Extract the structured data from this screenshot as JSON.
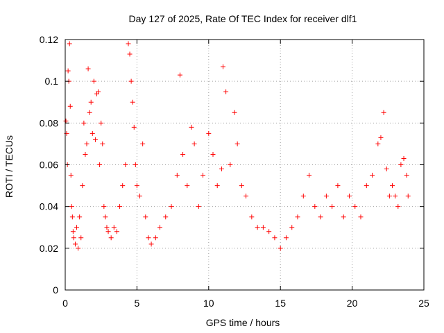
{
  "chart_data": {
    "type": "scatter",
    "title": "Day 127 of 2025, Rate Of TEC Index for receiver dlf1",
    "xlabel": "GPS time / hours",
    "ylabel": "ROTI / TECUs",
    "xlim": [
      0,
      25
    ],
    "ylim": [
      0,
      0.12
    ],
    "xticks": [
      0,
      5,
      10,
      15,
      20,
      25
    ],
    "yticks": [
      0,
      0.02,
      0.04,
      0.06,
      0.08,
      0.1,
      0.12
    ],
    "xtick_labels": [
      "0",
      "5",
      "10",
      "15",
      "20",
      "25"
    ],
    "ytick_labels": [
      "0",
      "0.02",
      "0.04",
      "0.06",
      "0.08",
      "0.1",
      "0.12"
    ],
    "grid": true,
    "marker": "+",
    "color": "#ff0000",
    "series": [
      {
        "x": [
          0.05,
          0.1,
          0.15,
          0.2,
          0.25,
          0.3,
          0.35,
          0.4,
          0.45,
          0.5,
          0.55,
          0.6,
          0.7,
          0.8,
          0.9,
          1.0,
          1.1,
          1.2,
          1.3,
          1.4,
          1.5,
          1.6,
          1.7,
          1.8,
          1.9,
          2.0,
          2.1,
          2.2,
          2.3,
          2.4,
          2.5,
          2.6,
          2.7,
          2.8,
          2.9,
          3.0,
          3.2,
          3.4,
          3.6,
          3.8,
          4.0,
          4.2,
          4.4,
          4.5,
          4.6,
          4.7,
          4.8,
          4.9,
          5.0,
          5.2,
          5.4,
          5.6,
          5.8,
          6.0,
          6.3,
          6.6,
          7.0,
          7.4,
          7.8,
          8.0,
          8.2,
          8.5,
          8.8,
          9.0,
          9.3,
          9.6,
          10.0,
          10.3,
          10.6,
          10.9,
          11.0,
          11.2,
          11.5,
          11.8,
          12.0,
          12.3,
          12.6,
          13.0,
          13.4,
          13.8,
          14.2,
          14.6,
          15.0,
          15.4,
          15.8,
          16.2,
          16.6,
          17.0,
          17.4,
          17.8,
          18.2,
          18.6,
          19.0,
          19.4,
          19.8,
          20.2,
          20.6,
          21.0,
          21.4,
          21.8,
          22.0,
          22.2,
          22.4,
          22.6,
          22.8,
          23.0,
          23.2,
          23.4,
          23.6,
          23.8,
          23.9
        ],
        "y": [
          0.081,
          0.075,
          0.06,
          0.105,
          0.1,
          0.118,
          0.088,
          0.055,
          0.04,
          0.035,
          0.028,
          0.025,
          0.022,
          0.03,
          0.02,
          0.035,
          0.025,
          0.05,
          0.08,
          0.065,
          0.07,
          0.106,
          0.085,
          0.09,
          0.075,
          0.1,
          0.072,
          0.094,
          0.095,
          0.06,
          0.08,
          0.07,
          0.04,
          0.035,
          0.03,
          0.028,
          0.025,
          0.03,
          0.028,
          0.04,
          0.05,
          0.06,
          0.118,
          0.113,
          0.1,
          0.09,
          0.078,
          0.06,
          0.05,
          0.045,
          0.07,
          0.035,
          0.025,
          0.022,
          0.025,
          0.03,
          0.035,
          0.04,
          0.055,
          0.103,
          0.065,
          0.05,
          0.078,
          0.07,
          0.04,
          0.055,
          0.075,
          0.065,
          0.05,
          0.058,
          0.107,
          0.095,
          0.06,
          0.085,
          0.07,
          0.05,
          0.045,
          0.035,
          0.03,
          0.03,
          0.028,
          0.025,
          0.02,
          0.025,
          0.03,
          0.035,
          0.045,
          0.055,
          0.04,
          0.035,
          0.045,
          0.04,
          0.05,
          0.035,
          0.045,
          0.04,
          0.035,
          0.05,
          0.055,
          0.07,
          0.073,
          0.085,
          0.058,
          0.045,
          0.05,
          0.045,
          0.04,
          0.06,
          0.063,
          0.055,
          0.045
        ]
      }
    ]
  }
}
